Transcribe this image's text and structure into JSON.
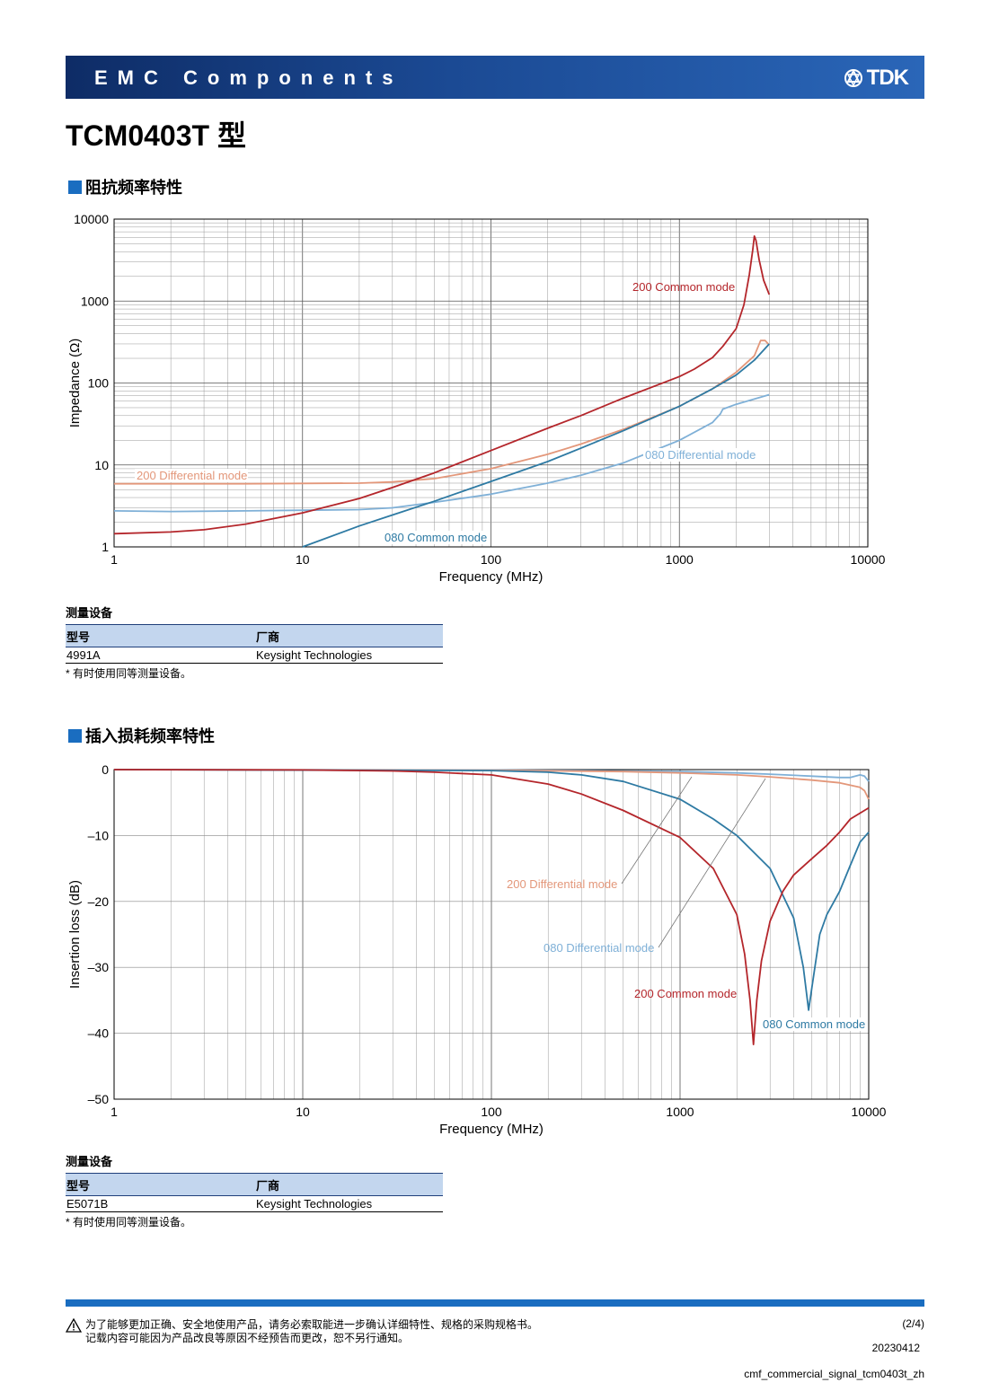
{
  "header": {
    "title": "EMC Components",
    "brand": "TDK"
  },
  "product_title": "TCM0403T 型",
  "colors": {
    "red": "#b4262b",
    "blue": "#2e7aa3",
    "salmon": "#e3977a",
    "lightblue": "#7fb0d7",
    "banner": "#1b4a94"
  },
  "chart_data": [
    {
      "type": "line",
      "section_title": "阻抗频率特性",
      "xlabel": "Frequency (MHz)",
      "ylabel": "Impedance (Ω)",
      "x_scale": "log",
      "y_scale": "log",
      "xlim": [
        1,
        10000
      ],
      "ylim": [
        1,
        10000
      ],
      "x_ticks": [
        "1",
        "10",
        "100",
        "1000",
        "10000"
      ],
      "y_ticks": [
        "10000",
        "1000",
        "100",
        "10",
        "1"
      ],
      "grid": true,
      "series": [
        {
          "name": "200 Common mode",
          "color": "red",
          "points": [
            [
              1,
              1.45
            ],
            [
              2,
              1.52
            ],
            [
              3,
              1.62
            ],
            [
              5,
              1.9
            ],
            [
              10,
              2.6
            ],
            [
              20,
              3.9
            ],
            [
              30,
              5.3
            ],
            [
              50,
              8
            ],
            [
              100,
              15
            ],
            [
              200,
              28
            ],
            [
              300,
              40
            ],
            [
              500,
              65
            ],
            [
              1000,
              120
            ],
            [
              1200,
              148
            ],
            [
              1500,
              205
            ],
            [
              1700,
              280
            ],
            [
              2000,
              460
            ],
            [
              2200,
              900
            ],
            [
              2350,
              2100
            ],
            [
              2450,
              4200
            ],
            [
              2500,
              6200
            ],
            [
              2550,
              5500
            ],
            [
              2650,
              3200
            ],
            [
              2800,
              1800
            ],
            [
              3000,
              1200
            ]
          ]
        },
        {
          "name": "080 Common mode",
          "color": "blue",
          "points": [
            [
              10,
              1.0
            ],
            [
              20,
              1.8
            ],
            [
              30,
              2.45
            ],
            [
              50,
              3.6
            ],
            [
              100,
              6.3
            ],
            [
              200,
              11
            ],
            [
              300,
              16
            ],
            [
              500,
              26
            ],
            [
              1000,
              52
            ],
            [
              1500,
              85
            ],
            [
              2000,
              125
            ],
            [
              2500,
              190
            ],
            [
              3000,
              300
            ]
          ]
        },
        {
          "name": "200 Differential mode",
          "color": "salmon",
          "points": [
            [
              1,
              5.9
            ],
            [
              5,
              5.9
            ],
            [
              10,
              5.95
            ],
            [
              20,
              6.0
            ],
            [
              30,
              6.2
            ],
            [
              50,
              6.8
            ],
            [
              100,
              9.0
            ],
            [
              200,
              13.5
            ],
            [
              300,
              18
            ],
            [
              500,
              27
            ],
            [
              1000,
              52
            ],
            [
              1500,
              85
            ],
            [
              2000,
              135
            ],
            [
              2500,
              215
            ],
            [
              2700,
              330
            ],
            [
              2850,
              330
            ],
            [
              3000,
              290
            ]
          ]
        },
        {
          "name": "080 Differential mode",
          "color": "lightblue",
          "points": [
            [
              1,
              2.75
            ],
            [
              2,
              2.7
            ],
            [
              5,
              2.75
            ],
            [
              10,
              2.8
            ],
            [
              20,
              2.85
            ],
            [
              30,
              3.0
            ],
            [
              50,
              3.5
            ],
            [
              100,
              4.4
            ],
            [
              200,
              6.0
            ],
            [
              300,
              7.5
            ],
            [
              500,
              10.5
            ],
            [
              1000,
              20
            ],
            [
              1500,
              33
            ],
            [
              1600,
              39
            ],
            [
              1650,
              42
            ],
            [
              1700,
              48
            ],
            [
              2000,
              55
            ],
            [
              3000,
              72
            ]
          ]
        }
      ]
    },
    {
      "type": "line",
      "section_title": "插入损耗频率特性",
      "xlabel": "Frequency (MHz)",
      "ylabel": "Insertion loss (dB)",
      "x_scale": "log",
      "xlim": [
        1,
        10000
      ],
      "ylim": [
        -50,
        0
      ],
      "x_ticks": [
        "1",
        "10",
        "100",
        "1000",
        "10000"
      ],
      "y_ticks": [
        "0",
        "–10",
        "–20",
        "–30",
        "–40",
        "–50"
      ],
      "grid": true,
      "series": [
        {
          "name": "200 Common mode",
          "color": "red",
          "points": [
            [
              1,
              0
            ],
            [
              10,
              -0.05
            ],
            [
              30,
              -0.2
            ],
            [
              50,
              -0.4
            ],
            [
              100,
              -0.8
            ],
            [
              200,
              -2.2
            ],
            [
              300,
              -3.7
            ],
            [
              500,
              -6.2
            ],
            [
              1000,
              -10.3
            ],
            [
              1500,
              -15
            ],
            [
              2000,
              -22
            ],
            [
              2200,
              -28
            ],
            [
              2350,
              -35
            ],
            [
              2450,
              -41.7
            ],
            [
              2550,
              -35
            ],
            [
              2700,
              -29
            ],
            [
              3000,
              -23
            ],
            [
              3500,
              -18.5
            ],
            [
              4000,
              -16
            ],
            [
              5000,
              -13.5
            ],
            [
              6000,
              -11.5
            ],
            [
              7000,
              -9.5
            ],
            [
              8000,
              -7.5
            ],
            [
              10000,
              -5.8
            ]
          ]
        },
        {
          "name": "080 Common mode",
          "color": "blue",
          "points": [
            [
              1,
              0
            ],
            [
              100,
              -0.15
            ],
            [
              200,
              -0.4
            ],
            [
              300,
              -0.8
            ],
            [
              500,
              -1.8
            ],
            [
              1000,
              -4.5
            ],
            [
              1500,
              -7.5
            ],
            [
              2000,
              -10
            ],
            [
              3000,
              -15
            ],
            [
              4000,
              -22.5
            ],
            [
              4500,
              -30
            ],
            [
              4800,
              -36.5
            ],
            [
              5000,
              -33
            ],
            [
              5500,
              -25
            ],
            [
              6000,
              -22
            ],
            [
              7000,
              -18.5
            ],
            [
              8000,
              -14.5
            ],
            [
              9000,
              -11
            ],
            [
              10000,
              -9.5
            ]
          ]
        },
        {
          "name": "200 Differential mode",
          "color": "salmon",
          "points": [
            [
              1,
              0
            ],
            [
              100,
              -0.1
            ],
            [
              500,
              -0.3
            ],
            [
              1000,
              -0.5
            ],
            [
              2000,
              -0.8
            ],
            [
              3000,
              -1.1
            ],
            [
              5000,
              -1.6
            ],
            [
              7000,
              -2.0
            ],
            [
              9000,
              -2.7
            ],
            [
              9500,
              -3.2
            ],
            [
              10000,
              -4.5
            ]
          ]
        },
        {
          "name": "080 Differential mode",
          "color": "lightblue",
          "points": [
            [
              1,
              0
            ],
            [
              100,
              -0.05
            ],
            [
              500,
              -0.2
            ],
            [
              1000,
              -0.3
            ],
            [
              2000,
              -0.5
            ],
            [
              3000,
              -0.7
            ],
            [
              5000,
              -1.0
            ],
            [
              7000,
              -1.2
            ],
            [
              8000,
              -1.2
            ],
            [
              9000,
              -0.8
            ],
            [
              9500,
              -1.0
            ],
            [
              10000,
              -1.8
            ]
          ]
        }
      ]
    }
  ],
  "section1": {
    "title": "阻抗频率特性",
    "measurement": {
      "caption": "测量设备",
      "col_model": "型号",
      "col_vendor": "厂商",
      "model": "4991A",
      "vendor": "Keysight Technologies",
      "note": "* 有时使用同等测量设备。"
    }
  },
  "section2": {
    "title": "插入损耗频率特性",
    "measurement": {
      "caption": "测量设备",
      "col_model": "型号",
      "col_vendor": "厂商",
      "model": "E5071B",
      "vendor": "Keysight Technologies",
      "note": "* 有时使用同等测量设备。"
    }
  },
  "footer": {
    "note_line1": "为了能够更加正确、安全地使用产品，请务必索取能进一步确认详细特性、规格的采购规格书。",
    "note_line2": "记载内容可能因为产品改良等原因不经预告而更改，恕不另行通知。",
    "page": "(2/4)",
    "date": "20230412",
    "doc_id": "cmf_commercial_signal_tcm0403t_zh"
  }
}
